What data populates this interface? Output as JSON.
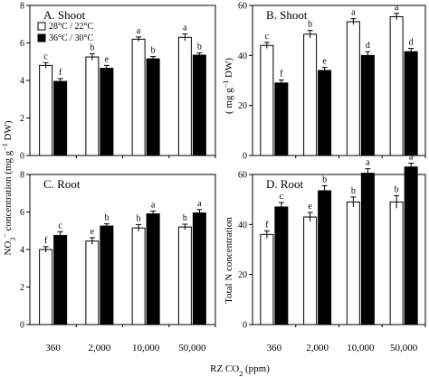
{
  "legend": {
    "items": [
      {
        "label": "28°C / 22°C",
        "color": "#ffffff"
      },
      {
        "label": "36°C / 30°C",
        "color": "#000000"
      }
    ]
  },
  "y_titles": {
    "left_prefix": "NO",
    "left_sub": "3",
    "left_sup": "−",
    "left_suffix": " concentration  (mg g",
    "left_unit_sup": "−1",
    "left_end": " DW)",
    "right_top": "( mg g",
    "right_top_sup": "−1",
    "right_top_end": " DW)",
    "right_bottom": "Total  N concentration"
  },
  "x_title": {
    "prefix": "RZ CO",
    "sub": "2",
    "suffix": " (ppm)"
  },
  "chart_data": [
    {
      "id": "A",
      "type": "bar",
      "title": "A. Shoot",
      "categories": [
        "360",
        "2,000",
        "10,000",
        "50,000"
      ],
      "ylim": [
        0,
        8
      ],
      "yticks": [
        0,
        2,
        4,
        6,
        8
      ],
      "series": [
        {
          "name": "28°C / 22°C",
          "color": "#ffffff",
          "values": [
            4.8,
            5.25,
            6.2,
            6.3
          ],
          "errors": [
            0.15,
            0.18,
            0.12,
            0.18
          ],
          "letters": [
            "c",
            "b",
            "a",
            "a"
          ]
        },
        {
          "name": "36°C / 30°C",
          "color": "#000000",
          "values": [
            3.95,
            4.65,
            5.15,
            5.35
          ],
          "errors": [
            0.15,
            0.15,
            0.12,
            0.12
          ],
          "letters": [
            "f",
            "e",
            "b",
            "b"
          ]
        }
      ]
    },
    {
      "id": "B",
      "type": "bar",
      "title": "B. Shoot",
      "categories": [
        "360",
        "2,000",
        "10,000",
        "50,000"
      ],
      "ylim": [
        0,
        60
      ],
      "yticks": [
        0,
        20,
        40,
        60
      ],
      "series": [
        {
          "name": "28°C / 22°C",
          "color": "#ffffff",
          "values": [
            44,
            48.5,
            53.5,
            55.5
          ],
          "errors": [
            1.2,
            1.5,
            1.2,
            1.3
          ],
          "letters": [
            "c",
            "b",
            "a",
            "a"
          ]
        },
        {
          "name": "36°C / 30°C",
          "color": "#000000",
          "values": [
            29,
            34,
            40,
            41.5
          ],
          "errors": [
            1.2,
            1.2,
            1.5,
            1.3
          ],
          "letters": [
            "f",
            "e",
            "d",
            "d"
          ]
        }
      ]
    },
    {
      "id": "C",
      "type": "bar",
      "title": "C. Root",
      "categories": [
        "360",
        "2,000",
        "10,000",
        "50,000"
      ],
      "ylim": [
        0,
        8
      ],
      "yticks": [
        0,
        2,
        4,
        6,
        8
      ],
      "series": [
        {
          "name": "28°C / 22°C",
          "color": "#ffffff",
          "values": [
            4.0,
            4.45,
            5.15,
            5.2
          ],
          "errors": [
            0.15,
            0.18,
            0.18,
            0.15
          ],
          "letters": [
            "f",
            "e",
            "b",
            "b"
          ]
        },
        {
          "name": "36°C / 30°C",
          "color": "#000000",
          "values": [
            4.75,
            5.25,
            5.9,
            5.95
          ],
          "errors": [
            0.2,
            0.12,
            0.15,
            0.18
          ],
          "letters": [
            "c",
            "b",
            "a",
            "a"
          ]
        }
      ]
    },
    {
      "id": "D",
      "type": "bar",
      "title": "D. Root",
      "categories": [
        "360",
        "2,000",
        "10,000",
        "50,000"
      ],
      "ylim": [
        0,
        60
      ],
      "yticks": [
        0,
        20,
        40,
        60
      ],
      "series": [
        {
          "name": "28°C / 22°C",
          "color": "#ffffff",
          "values": [
            36,
            43,
            49,
            49
          ],
          "errors": [
            1.5,
            1.8,
            2.0,
            2.5
          ],
          "letters": [
            "f",
            "e",
            "b",
            "b"
          ]
        },
        {
          "name": "36°C / 30°C",
          "color": "#000000",
          "values": [
            47,
            53.5,
            60.5,
            63
          ],
          "errors": [
            1.8,
            2.0,
            1.8,
            1.5
          ],
          "letters": [
            "c",
            "b",
            "a",
            "a"
          ]
        }
      ]
    }
  ]
}
